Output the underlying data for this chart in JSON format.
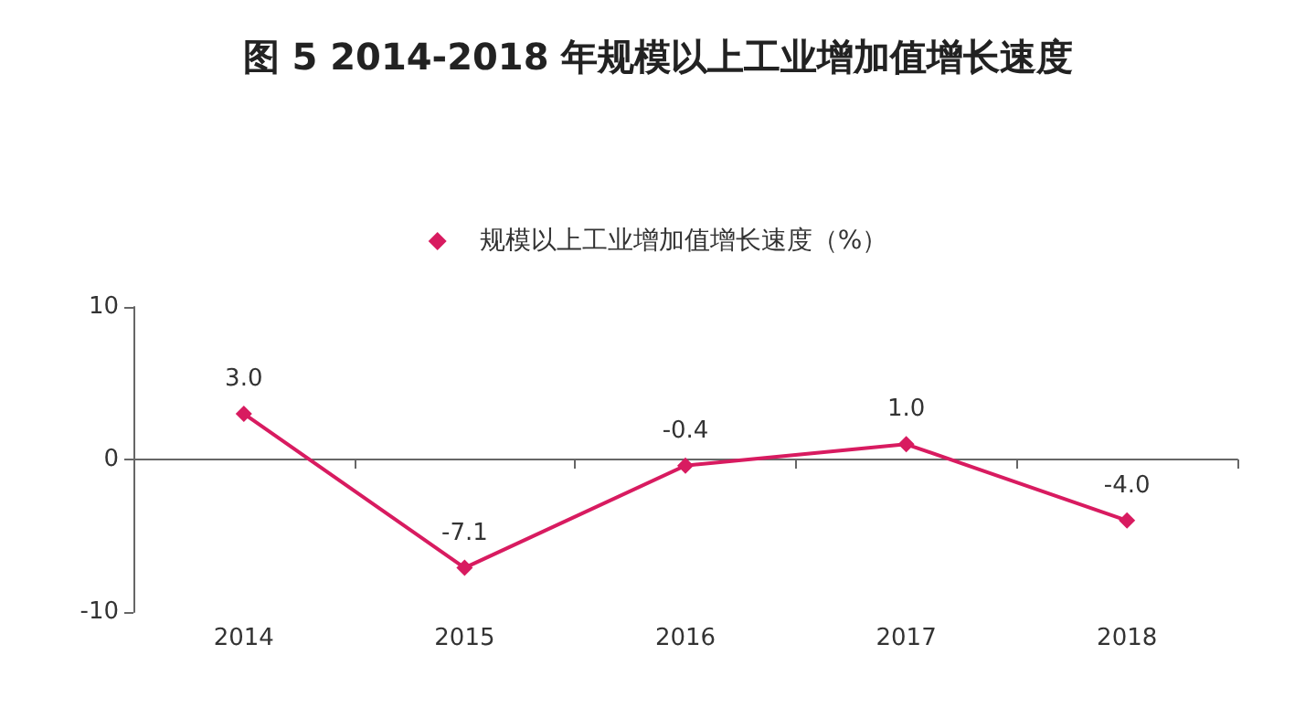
{
  "chart_data": {
    "type": "line",
    "title": "图 5 2014-2018 年规模以上工业增加值增长速度",
    "categories": [
      "2014",
      "2015",
      "2016",
      "2017",
      "2018"
    ],
    "series": [
      {
        "name": "规模以上工业增加值增长速度（%）",
        "color": "#d81b60",
        "values": [
          3.0,
          -7.1,
          -0.4,
          1.0,
          -4.0
        ],
        "value_labels": [
          "3.0",
          "-7.1",
          "-0.4",
          "1.0",
          "-4.0"
        ]
      }
    ],
    "ylim": [
      -10,
      10
    ],
    "yticks": [
      -10,
      0,
      10
    ],
    "legend": "top",
    "marker": "diamond",
    "line_style": "solid"
  }
}
